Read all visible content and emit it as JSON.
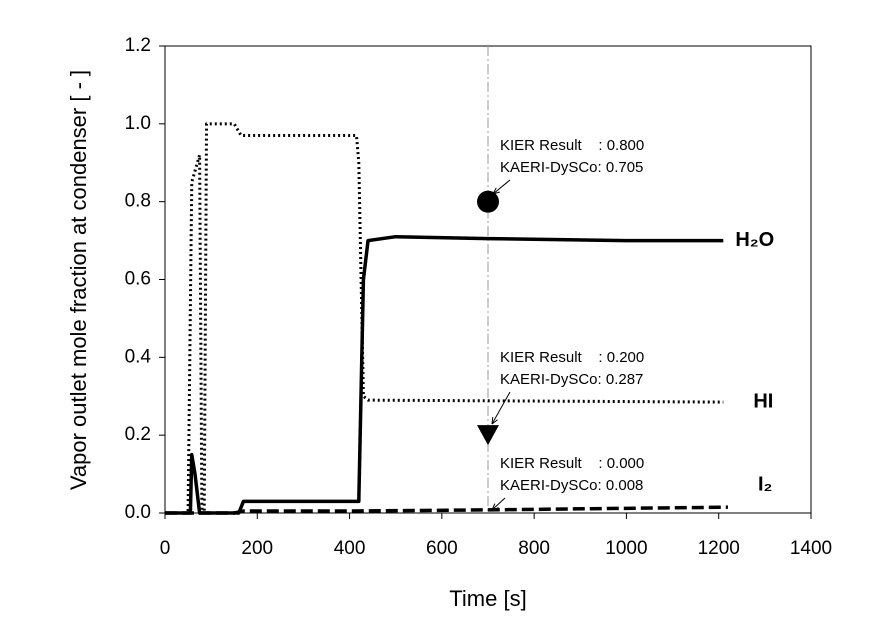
{
  "chart_data": {
    "type": "line",
    "xlabel": "Time [s]",
    "ylabel": "Vapor outlet mole fraction at condenser [ - ]",
    "xlim": [
      0,
      1400
    ],
    "xticks": [
      0,
      200,
      400,
      600,
      800,
      1000,
      1200,
      1400
    ],
    "ylim": [
      0,
      1.2
    ],
    "yticks": [
      {
        "value": 0,
        "label": "0.0"
      },
      {
        "value": 0.2,
        "label": "0.2"
      },
      {
        "value": 0.4,
        "label": "0.4"
      },
      {
        "value": 0.6,
        "label": "0.6"
      },
      {
        "value": 0.8,
        "label": "0.8"
      },
      {
        "value": 1.0,
        "label": "1.0"
      },
      {
        "value": 1.2,
        "label": "1.2"
      }
    ],
    "vline": 700,
    "series": [
      {
        "name": "H₂O",
        "color": "#000000",
        "style": "solid",
        "x": [
          0,
          55,
          58,
          65,
          75,
          160,
          170,
          420,
          430,
          440,
          500,
          700,
          1000,
          1210
        ],
        "values": [
          0,
          0,
          0.15,
          0.1,
          0,
          0,
          0.03,
          0.03,
          0.6,
          0.7,
          0.71,
          0.705,
          0.7,
          0.7
        ]
      },
      {
        "name": "HI",
        "color": "#000000",
        "style": "dotted",
        "x": [
          0,
          50,
          58,
          75,
          80,
          85,
          90,
          150,
          165,
          415,
          420,
          430,
          440,
          1210
        ],
        "values": [
          0,
          0,
          0.85,
          0.92,
          0,
          0,
          1.0,
          1.0,
          0.97,
          0.97,
          0.9,
          0.3,
          0.29,
          0.285
        ]
      },
      {
        "name": "I₂",
        "color": "#000000",
        "style": "dashed",
        "x": [
          0,
          150,
          170,
          400,
          700,
          1000,
          1220
        ],
        "values": [
          0,
          0,
          0.005,
          0.005,
          0.008,
          0.012,
          0.015
        ]
      }
    ],
    "points": [
      {
        "x": 700,
        "y": 0.8,
        "marker": "circle"
      },
      {
        "x": 700,
        "y": 0.2,
        "marker": "triangle-down"
      }
    ],
    "annotations": [
      {
        "lines": [
          "KIER Result    : 0.800",
          "KAERI-DySCo: 0.705"
        ]
      },
      {
        "lines": [
          "KIER Result    : 0.200",
          "KAERI-DySCo: 0.287"
        ]
      },
      {
        "lines": [
          "KIER Result    : 0.000",
          "KAERI-DySCo: 0.008"
        ]
      }
    ]
  }
}
